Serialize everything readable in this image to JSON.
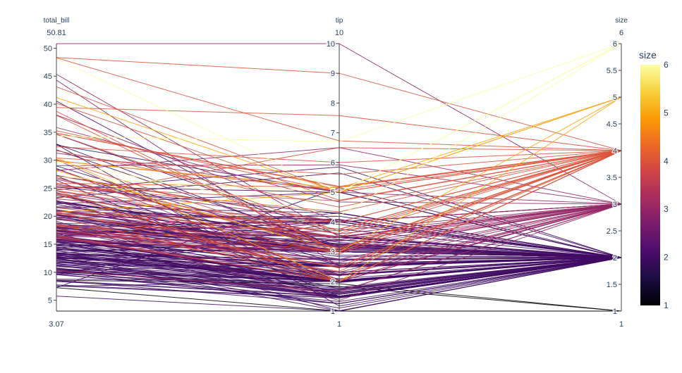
{
  "chart_data": {
    "type": "parcoords",
    "color_by": "size",
    "colorscale": [
      "#000004",
      "#1b0c41",
      "#4a0c6b",
      "#781c6d",
      "#a52c60",
      "#cf4446",
      "#ed6925",
      "#fb9b06",
      "#f7d13d",
      "#fcffa4"
    ],
    "axes": [
      {
        "name": "total_bill",
        "label": "total_bill",
        "range": [
          3.07,
          50.81
        ],
        "max_label": "50.81",
        "min_label": "3.07",
        "ticks": [
          5,
          10,
          15,
          20,
          25,
          30,
          35,
          40,
          45,
          50
        ]
      },
      {
        "name": "tip",
        "label": "tip",
        "range": [
          1,
          10
        ],
        "max_label": "10",
        "min_label": "1",
        "ticks": [
          1,
          2,
          3,
          4,
          5,
          6,
          7,
          8,
          9,
          10
        ]
      },
      {
        "name": "size",
        "label": "size",
        "range": [
          1,
          6
        ],
        "max_label": "6",
        "min_label": "1",
        "ticks": [
          1,
          1.5,
          2,
          2.5,
          3,
          3.5,
          4,
          4.5,
          5,
          5.5,
          6
        ]
      }
    ],
    "colorbar": {
      "title": "size",
      "range": [
        1,
        6
      ],
      "ticks": [
        1,
        2,
        3,
        4,
        5,
        6
      ]
    },
    "rows": [
      [
        16.99,
        1.01,
        2
      ],
      [
        10.34,
        1.66,
        3
      ],
      [
        21.01,
        3.5,
        3
      ],
      [
        23.68,
        3.31,
        2
      ],
      [
        24.59,
        3.61,
        4
      ],
      [
        25.29,
        4.71,
        4
      ],
      [
        8.77,
        2,
        2
      ],
      [
        26.88,
        3.12,
        4
      ],
      [
        15.04,
        1.96,
        2
      ],
      [
        14.78,
        3.23,
        2
      ],
      [
        10.27,
        1.71,
        2
      ],
      [
        35.26,
        5,
        4
      ],
      [
        15.42,
        1.57,
        2
      ],
      [
        18.43,
        3,
        4
      ],
      [
        14.83,
        3.02,
        2
      ],
      [
        21.58,
        3.92,
        2
      ],
      [
        10.33,
        1.67,
        3
      ],
      [
        16.29,
        3.71,
        3
      ],
      [
        16.97,
        3.5,
        3
      ],
      [
        20.65,
        3.35,
        3
      ],
      [
        17.92,
        4.08,
        2
      ],
      [
        20.29,
        2.75,
        2
      ],
      [
        15.77,
        2.23,
        2
      ],
      [
        39.42,
        7.58,
        4
      ],
      [
        19.82,
        3.18,
        2
      ],
      [
        17.81,
        2.34,
        4
      ],
      [
        13.37,
        2,
        2
      ],
      [
        12.69,
        2,
        2
      ],
      [
        21.7,
        4.3,
        2
      ],
      [
        19.65,
        3,
        2
      ],
      [
        9.55,
        1.45,
        2
      ],
      [
        18.35,
        2.5,
        4
      ],
      [
        15.06,
        3,
        2
      ],
      [
        20.69,
        2.45,
        4
      ],
      [
        17.78,
        3.27,
        2
      ],
      [
        24.06,
        3.6,
        3
      ],
      [
        16.31,
        2,
        3
      ],
      [
        16.93,
        3.07,
        3
      ],
      [
        18.69,
        2.31,
        3
      ],
      [
        31.27,
        5,
        3
      ],
      [
        16.04,
        2.24,
        3
      ],
      [
        17.46,
        2.54,
        2
      ],
      [
        13.94,
        3.06,
        2
      ],
      [
        9.68,
        1.32,
        2
      ],
      [
        30.4,
        5.6,
        4
      ],
      [
        18.29,
        3,
        2
      ],
      [
        22.23,
        5,
        2
      ],
      [
        32.4,
        6,
        4
      ],
      [
        28.55,
        2.05,
        3
      ],
      [
        18.04,
        3,
        2
      ],
      [
        12.54,
        2.5,
        2
      ],
      [
        10.29,
        2.6,
        2
      ],
      [
        34.81,
        5.2,
        4
      ],
      [
        9.94,
        1.56,
        2
      ],
      [
        25.56,
        4.34,
        4
      ],
      [
        19.49,
        3.51,
        2
      ],
      [
        38.01,
        3,
        4
      ],
      [
        26.41,
        1.5,
        2
      ],
      [
        11.24,
        1.76,
        2
      ],
      [
        48.27,
        6.73,
        4
      ],
      [
        20.29,
        3.21,
        2
      ],
      [
        13.81,
        2,
        2
      ],
      [
        11.02,
        1.98,
        2
      ],
      [
        18.29,
        3.76,
        4
      ],
      [
        17.59,
        2.64,
        3
      ],
      [
        20.08,
        3.15,
        3
      ],
      [
        16.45,
        2.47,
        2
      ],
      [
        3.07,
        1,
        1
      ],
      [
        20.23,
        2.01,
        2
      ],
      [
        15.01,
        2.09,
        2
      ],
      [
        12.02,
        1.97,
        2
      ],
      [
        17.07,
        3,
        3
      ],
      [
        26.86,
        3.14,
        2
      ],
      [
        25.28,
        5,
        2
      ],
      [
        14.73,
        2.2,
        2
      ],
      [
        10.51,
        1.25,
        2
      ],
      [
        17.92,
        3.08,
        2
      ],
      [
        27.2,
        4,
        4
      ],
      [
        22.76,
        3,
        2
      ],
      [
        17.29,
        2.71,
        2
      ],
      [
        19.44,
        3,
        2
      ],
      [
        16.66,
        3.4,
        2
      ],
      [
        10.07,
        1.83,
        1
      ],
      [
        32.68,
        5,
        2
      ],
      [
        15.98,
        2.03,
        2
      ],
      [
        34.83,
        5.17,
        4
      ],
      [
        13.03,
        2,
        2
      ],
      [
        18.28,
        4,
        2
      ],
      [
        24.71,
        5.85,
        2
      ],
      [
        21.16,
        3,
        2
      ],
      [
        28.97,
        3,
        2
      ],
      [
        22.49,
        3.5,
        2
      ],
      [
        5.75,
        1,
        2
      ],
      [
        16.32,
        4.3,
        2
      ],
      [
        22.75,
        3.25,
        2
      ],
      [
        40.17,
        4.73,
        4
      ],
      [
        27.28,
        4,
        2
      ],
      [
        12.03,
        1.5,
        2
      ],
      [
        21.01,
        3,
        2
      ],
      [
        12.46,
        1.5,
        2
      ],
      [
        11.35,
        2.5,
        2
      ],
      [
        15.38,
        3,
        2
      ],
      [
        44.3,
        2.5,
        3
      ],
      [
        22.42,
        3.48,
        2
      ],
      [
        20.92,
        4.08,
        2
      ],
      [
        15.36,
        1.64,
        2
      ],
      [
        20.49,
        4.06,
        2
      ],
      [
        25.21,
        4.29,
        2
      ],
      [
        18.24,
        3.76,
        2
      ],
      [
        14.31,
        4,
        2
      ],
      [
        14,
        3,
        2
      ],
      [
        7.25,
        1,
        1
      ],
      [
        38.07,
        4,
        3
      ],
      [
        23.95,
        2.55,
        2
      ],
      [
        25.71,
        4,
        3
      ],
      [
        17.31,
        3.5,
        2
      ],
      [
        29.93,
        5.07,
        4
      ],
      [
        10.65,
        1.5,
        2
      ],
      [
        12.43,
        1.8,
        2
      ],
      [
        24.08,
        2.92,
        4
      ],
      [
        11.69,
        2.31,
        2
      ],
      [
        13.42,
        1.68,
        2
      ],
      [
        14.26,
        2.5,
        2
      ],
      [
        15.95,
        2,
        2
      ],
      [
        12.48,
        2.52,
        2
      ],
      [
        29.8,
        4.2,
        6
      ],
      [
        8.52,
        1.48,
        2
      ],
      [
        14.52,
        2,
        2
      ],
      [
        11.38,
        2,
        2
      ],
      [
        22.82,
        2.18,
        3
      ],
      [
        19.08,
        1.5,
        2
      ],
      [
        20.27,
        2.83,
        2
      ],
      [
        11.17,
        1.5,
        2
      ],
      [
        12.26,
        2,
        2
      ],
      [
        18.26,
        3.25,
        2
      ],
      [
        8.51,
        1.25,
        2
      ],
      [
        10.33,
        2,
        2
      ],
      [
        14.15,
        2,
        2
      ],
      [
        16,
        2,
        2
      ],
      [
        13.16,
        2.75,
        2
      ],
      [
        17.47,
        3.5,
        2
      ],
      [
        34.3,
        6.7,
        6
      ],
      [
        41.19,
        5,
        5
      ],
      [
        27.05,
        5,
        6
      ],
      [
        16.43,
        2.3,
        2
      ],
      [
        8.35,
        1.5,
        2
      ],
      [
        18.64,
        1.36,
        3
      ],
      [
        11.87,
        1.63,
        2
      ],
      [
        9.78,
        1.73,
        2
      ],
      [
        7.51,
        2,
        2
      ],
      [
        14.07,
        2.5,
        2
      ],
      [
        13.13,
        2,
        2
      ],
      [
        17.26,
        2.74,
        3
      ],
      [
        24.55,
        2,
        4
      ],
      [
        19.77,
        2,
        4
      ],
      [
        29.85,
        5.14,
        5
      ],
      [
        48.17,
        5,
        6
      ],
      [
        25,
        3.75,
        4
      ],
      [
        13.39,
        2.61,
        2
      ],
      [
        16.49,
        2,
        4
      ],
      [
        21.5,
        3.5,
        4
      ],
      [
        12.66,
        2.5,
        2
      ],
      [
        16.21,
        2,
        3
      ],
      [
        13.81,
        2,
        2
      ],
      [
        17.51,
        3,
        2
      ],
      [
        24.52,
        3.48,
        3
      ],
      [
        20.76,
        2.24,
        2
      ],
      [
        31.71,
        4.5,
        4
      ],
      [
        10.59,
        1.61,
        2
      ],
      [
        10.63,
        2,
        2
      ],
      [
        50.81,
        10,
        3
      ],
      [
        15.81,
        3.16,
        2
      ],
      [
        7.25,
        5.15,
        2
      ],
      [
        31.85,
        3.18,
        2
      ],
      [
        16.82,
        4,
        2
      ],
      [
        32.9,
        3.11,
        2
      ],
      [
        17.89,
        2,
        2
      ],
      [
        14.48,
        2,
        2
      ],
      [
        9.6,
        4,
        2
      ],
      [
        34.63,
        3.55,
        2
      ],
      [
        34.65,
        3.68,
        4
      ],
      [
        23.33,
        5.65,
        2
      ],
      [
        45.35,
        3.5,
        3
      ],
      [
        23.17,
        6.5,
        4
      ],
      [
        40.55,
        3,
        2
      ],
      [
        20.69,
        5,
        5
      ],
      [
        20.9,
        3.5,
        3
      ],
      [
        30.46,
        2,
        5
      ],
      [
        18.15,
        3.5,
        3
      ],
      [
        23.1,
        4,
        3
      ],
      [
        15.69,
        1.5,
        2
      ],
      [
        19.81,
        4.19,
        2
      ],
      [
        28.44,
        2.56,
        2
      ],
      [
        15.48,
        2.02,
        2
      ],
      [
        16.58,
        4,
        2
      ],
      [
        7.56,
        1.44,
        2
      ],
      [
        10.34,
        2,
        2
      ],
      [
        43.11,
        5,
        4
      ],
      [
        13,
        2,
        2
      ],
      [
        13.51,
        2,
        2
      ],
      [
        18.71,
        4,
        3
      ],
      [
        12.74,
        2.01,
        2
      ],
      [
        13,
        2,
        2
      ],
      [
        16.4,
        2.5,
        2
      ],
      [
        20.53,
        4,
        4
      ],
      [
        16.47,
        3.23,
        3
      ],
      [
        26.59,
        3.41,
        3
      ],
      [
        38.73,
        3,
        4
      ],
      [
        24.27,
        2.03,
        2
      ],
      [
        12.76,
        2.23,
        2
      ],
      [
        30.06,
        2,
        3
      ],
      [
        25.89,
        5.16,
        4
      ],
      [
        48.33,
        9,
        4
      ],
      [
        13.27,
        2.5,
        2
      ],
      [
        28.17,
        6.5,
        3
      ],
      [
        12.9,
        1.1,
        2
      ],
      [
        28.15,
        3,
        5
      ],
      [
        11.59,
        1.5,
        2
      ],
      [
        7.74,
        1.44,
        2
      ],
      [
        30.14,
        3.09,
        4
      ],
      [
        12.16,
        2.2,
        2
      ],
      [
        13.42,
        3.48,
        2
      ],
      [
        8.58,
        1.92,
        1
      ],
      [
        15.98,
        3,
        3
      ],
      [
        13.42,
        1.58,
        2
      ],
      [
        16.27,
        2.5,
        2
      ],
      [
        10.09,
        2,
        2
      ],
      [
        20.45,
        3,
        4
      ],
      [
        13.28,
        2.72,
        2
      ],
      [
        22.12,
        2.88,
        2
      ],
      [
        24.01,
        2,
        4
      ],
      [
        15.69,
        3,
        3
      ],
      [
        11.61,
        3.39,
        2
      ],
      [
        10.77,
        1.47,
        2
      ],
      [
        15.53,
        3,
        2
      ],
      [
        10.07,
        1.25,
        2
      ],
      [
        12.6,
        1,
        2
      ],
      [
        32.83,
        1.17,
        2
      ],
      [
        35.83,
        4.67,
        3
      ],
      [
        29.03,
        5.92,
        3
      ],
      [
        27.18,
        2,
        2
      ],
      [
        22.67,
        2,
        2
      ],
      [
        17.82,
        1.75,
        2
      ],
      [
        18.78,
        3,
        2
      ]
    ]
  }
}
